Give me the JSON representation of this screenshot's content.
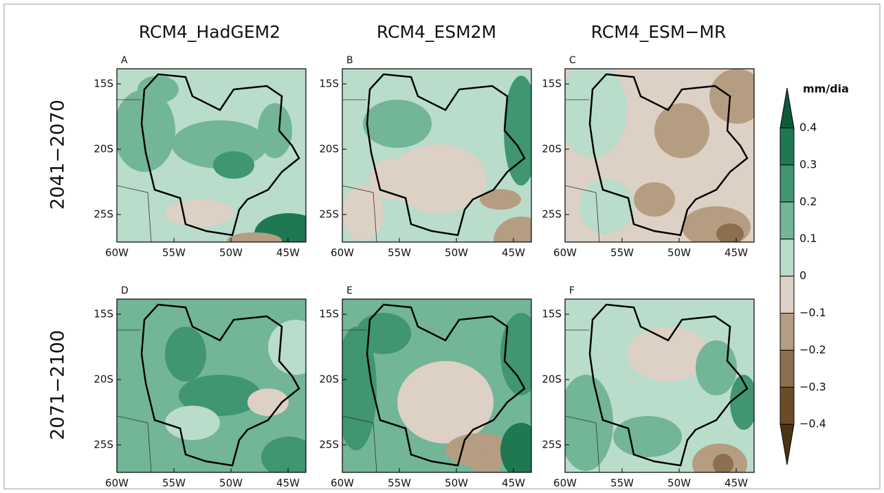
{
  "columns": [
    "RCM4_HadGEM2",
    "RCM4_ESM2M",
    "RCM4_ESM−MR"
  ],
  "rows": [
    "2041−2070",
    "2071−2100"
  ],
  "panels": [
    "A",
    "B",
    "C",
    "D",
    "E",
    "F"
  ],
  "lat_labels": [
    "15S",
    "20S",
    "25S"
  ],
  "lon_labels": [
    "60W",
    "55W",
    "50W",
    "45W"
  ],
  "colorbar": {
    "unit": "mm/dia",
    "labels": [
      "0.4",
      "0.3",
      "0.2",
      "0.1",
      "0",
      "−0.1",
      "−0.2",
      "−0.3",
      "−0.4"
    ],
    "colors": [
      "#0d5a3b",
      "#1e7852",
      "#3f9671",
      "#72b597",
      "#b9dccb",
      "#ddd0c4",
      "#b59d82",
      "#8d6e4e",
      "#6c4b27",
      "#4e3312"
    ]
  }
}
